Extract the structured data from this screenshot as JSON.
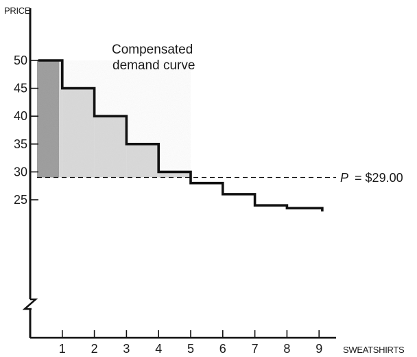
{
  "chart_data": {
    "type": "line",
    "step": true,
    "ylabel": "PRICE",
    "xlabel": "SWEATSHIRTS",
    "x_ticks": [
      1,
      2,
      3,
      4,
      5,
      6,
      7,
      8,
      9
    ],
    "y_ticks": [
      25,
      30,
      35,
      40,
      45,
      50
    ],
    "axis_break": true,
    "series": [
      {
        "name": "Compensated demand curve",
        "type": "step",
        "quantities": [
          1,
          2,
          3,
          4,
          5,
          6,
          7,
          8,
          9
        ],
        "prices": [
          50,
          45,
          40,
          35,
          30,
          28,
          26,
          24,
          23.5
        ]
      }
    ],
    "price_line": {
      "value": 29,
      "label_prefix": "P",
      "label_value": "= $29.00",
      "style": "dashed"
    },
    "shaded_region": {
      "from_quantity": 0,
      "to_quantity": 5,
      "above_price": 29,
      "note": "consumer surplus; first unit darker"
    },
    "colors": {
      "curve": "#111111",
      "shade_light": "#d9d9d9",
      "shade_dark": "#9a9a9a",
      "text": "#1a1a1a"
    }
  }
}
